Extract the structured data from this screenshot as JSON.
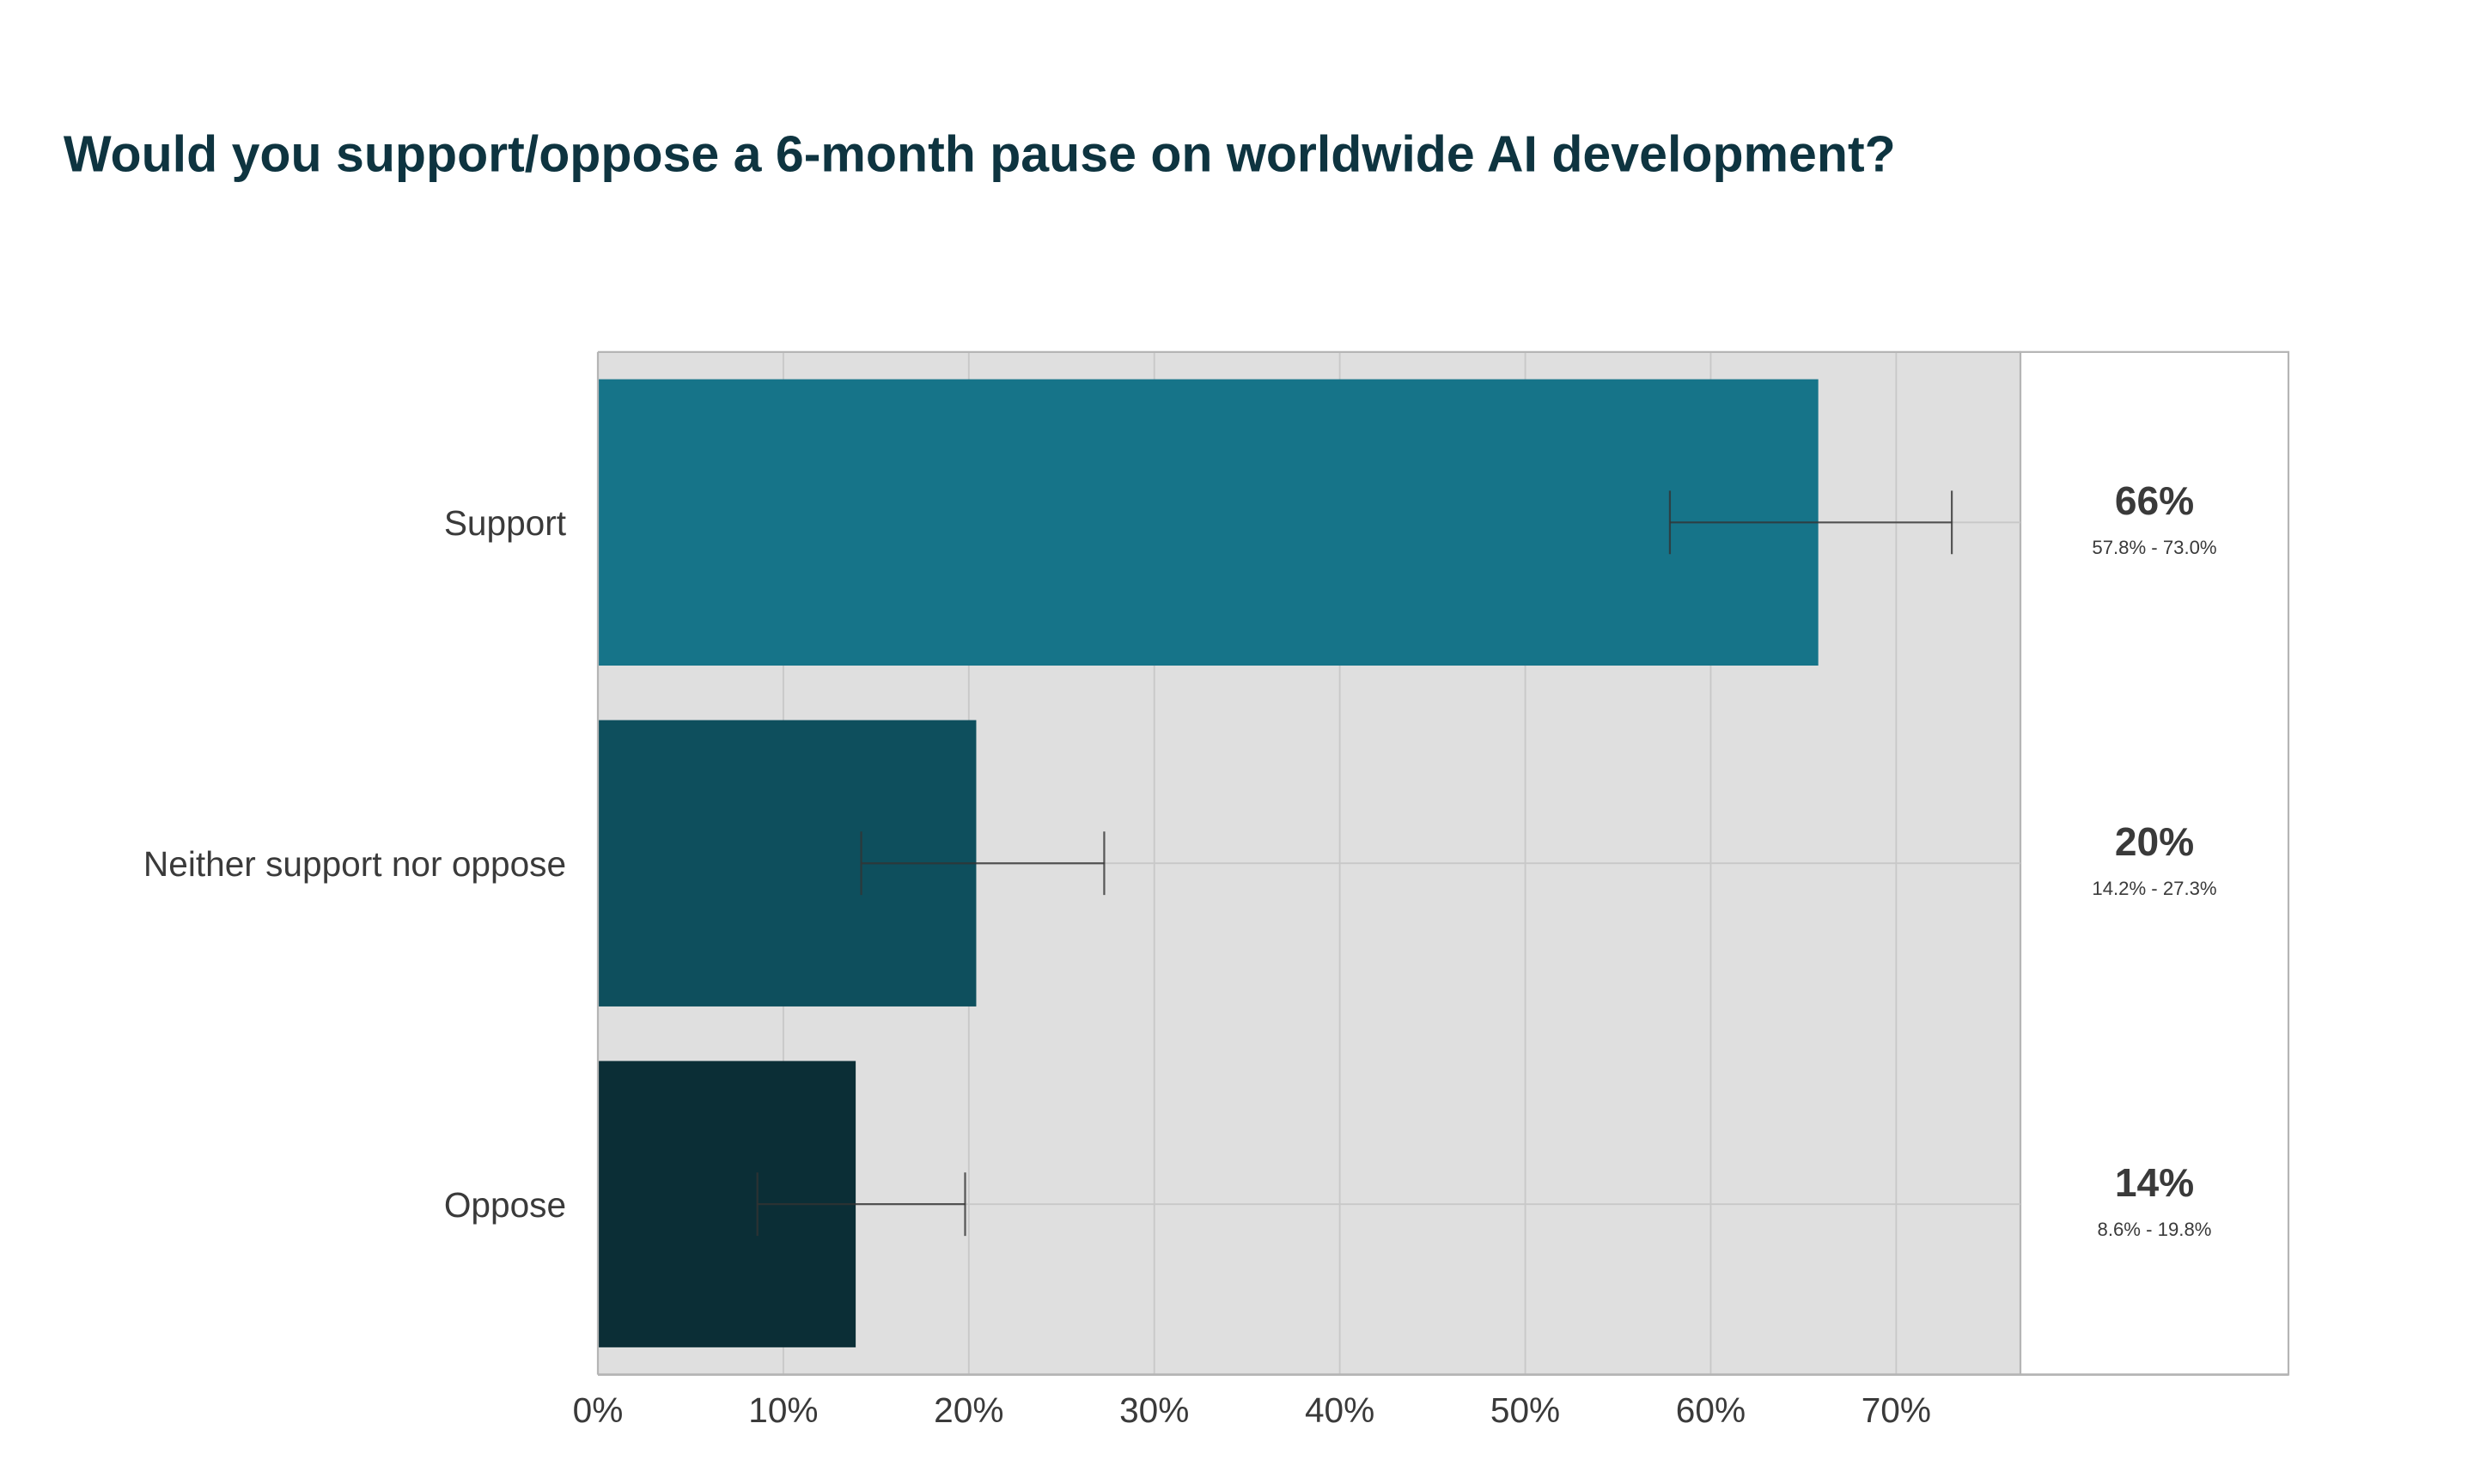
{
  "chart_data": {
    "type": "bar",
    "orientation": "horizontal",
    "title": "Would you support/oppose a 6-month pause on worldwide AI development?",
    "xlabel": "",
    "ylabel": "",
    "xlim": [
      0,
      76.7
    ],
    "x_ticks": [
      0,
      10,
      20,
      30,
      40,
      50,
      60,
      70
    ],
    "x_tick_labels": [
      "0%",
      "10%",
      "20%",
      "30%",
      "40%",
      "50%",
      "60%",
      "70%"
    ],
    "grid": true,
    "categories": [
      "Support",
      "Neither support nor oppose",
      "Oppose"
    ],
    "values": [
      65.8,
      20.4,
      13.9
    ],
    "ci_low": [
      57.8,
      14.2,
      8.6
    ],
    "ci_high": [
      73.0,
      27.3,
      19.8
    ],
    "value_labels": [
      "66%",
      "20%",
      "14%"
    ],
    "ci_labels": [
      "57.8% - 73.0%",
      "14.2% - 27.3%",
      "8.6% - 19.8%"
    ],
    "colors": [
      "#167489",
      "#0e4f5d",
      "#0b2e36"
    ]
  },
  "colors": {
    "title": "#0e3440",
    "plot_bg": "#dfdfdf",
    "grid": "#c8c8c8",
    "text": "#3a3a3a"
  }
}
